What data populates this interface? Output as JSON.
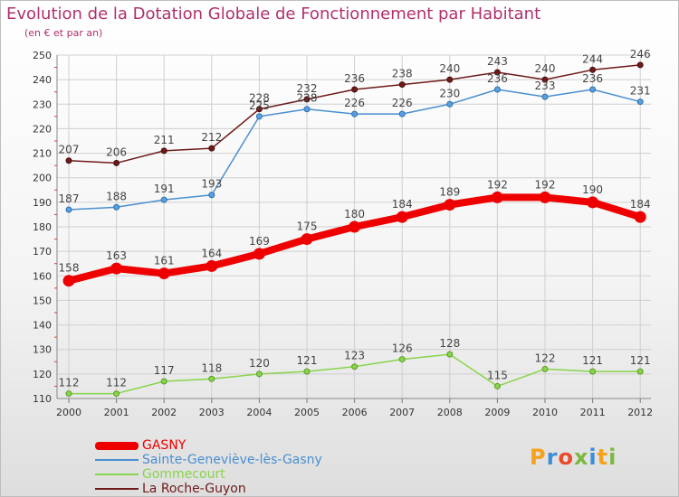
{
  "title": "Evolution de la Dotation Globale de Fonctionnement par Habitant",
  "subtitle": "(en € et par an)",
  "logo": {
    "text": "Proxiti",
    "letters": [
      "P",
      "r",
      "o",
      "x",
      "i",
      "t",
      "i"
    ],
    "colors": [
      "#f5a21b",
      "#3a8fd6",
      "#e94b2a",
      "#7cb83e",
      "#3a8fd6",
      "#f5a21b",
      "#7cb83e"
    ]
  },
  "chart_data": {
    "type": "line",
    "title": "Evolution de la Dotation Globale de Fonctionnement par Habitant",
    "subtitle": "(en € et par an)",
    "xlabel": "",
    "ylabel": "",
    "x": [
      "2000",
      "2001",
      "2002",
      "2003",
      "2004",
      "2005",
      "2006",
      "2007",
      "2008",
      "2009",
      "2010",
      "2011",
      "2012"
    ],
    "ylim": [
      110,
      250
    ],
    "yticks": [
      110,
      120,
      130,
      140,
      150,
      160,
      170,
      180,
      190,
      200,
      210,
      220,
      230,
      240,
      250
    ],
    "grid": true,
    "legend_position": "bottom-left",
    "series": [
      {
        "name": "GASNY",
        "color": "#ee0000",
        "values": [
          158,
          163,
          161,
          164,
          169,
          175,
          180,
          184,
          189,
          192,
          192,
          190,
          184
        ]
      },
      {
        "name": "Sainte-Geneviève-lès-Gasny",
        "color": "#4a8fd0",
        "values": [
          187,
          188,
          191,
          193,
          225,
          228,
          226,
          226,
          230,
          236,
          233,
          236,
          231
        ]
      },
      {
        "name": "Gommecourt",
        "color": "#88d44a",
        "values": [
          112,
          112,
          117,
          118,
          120,
          121,
          123,
          126,
          128,
          115,
          122,
          121,
          121
        ]
      },
      {
        "name": "La Roche-Guyon",
        "color": "#6e1a1a",
        "values": [
          207,
          206,
          211,
          212,
          228,
          232,
          236,
          238,
          240,
          243,
          240,
          244,
          246
        ]
      }
    ],
    "labels_drawn": [
      [
        158,
        163,
        161,
        164,
        169,
        175,
        180,
        184,
        189,
        192,
        192,
        190,
        184
      ],
      [
        187,
        188,
        191,
        193,
        225,
        228,
        226,
        226,
        230,
        236,
        233,
        236,
        231
      ],
      [
        112,
        112,
        117,
        118,
        120,
        121,
        123,
        126,
        128,
        115,
        122,
        121,
        121
      ],
      [
        207,
        206,
        211,
        212,
        228,
        232,
        236,
        238,
        240,
        243,
        240,
        244,
        246
      ]
    ]
  }
}
